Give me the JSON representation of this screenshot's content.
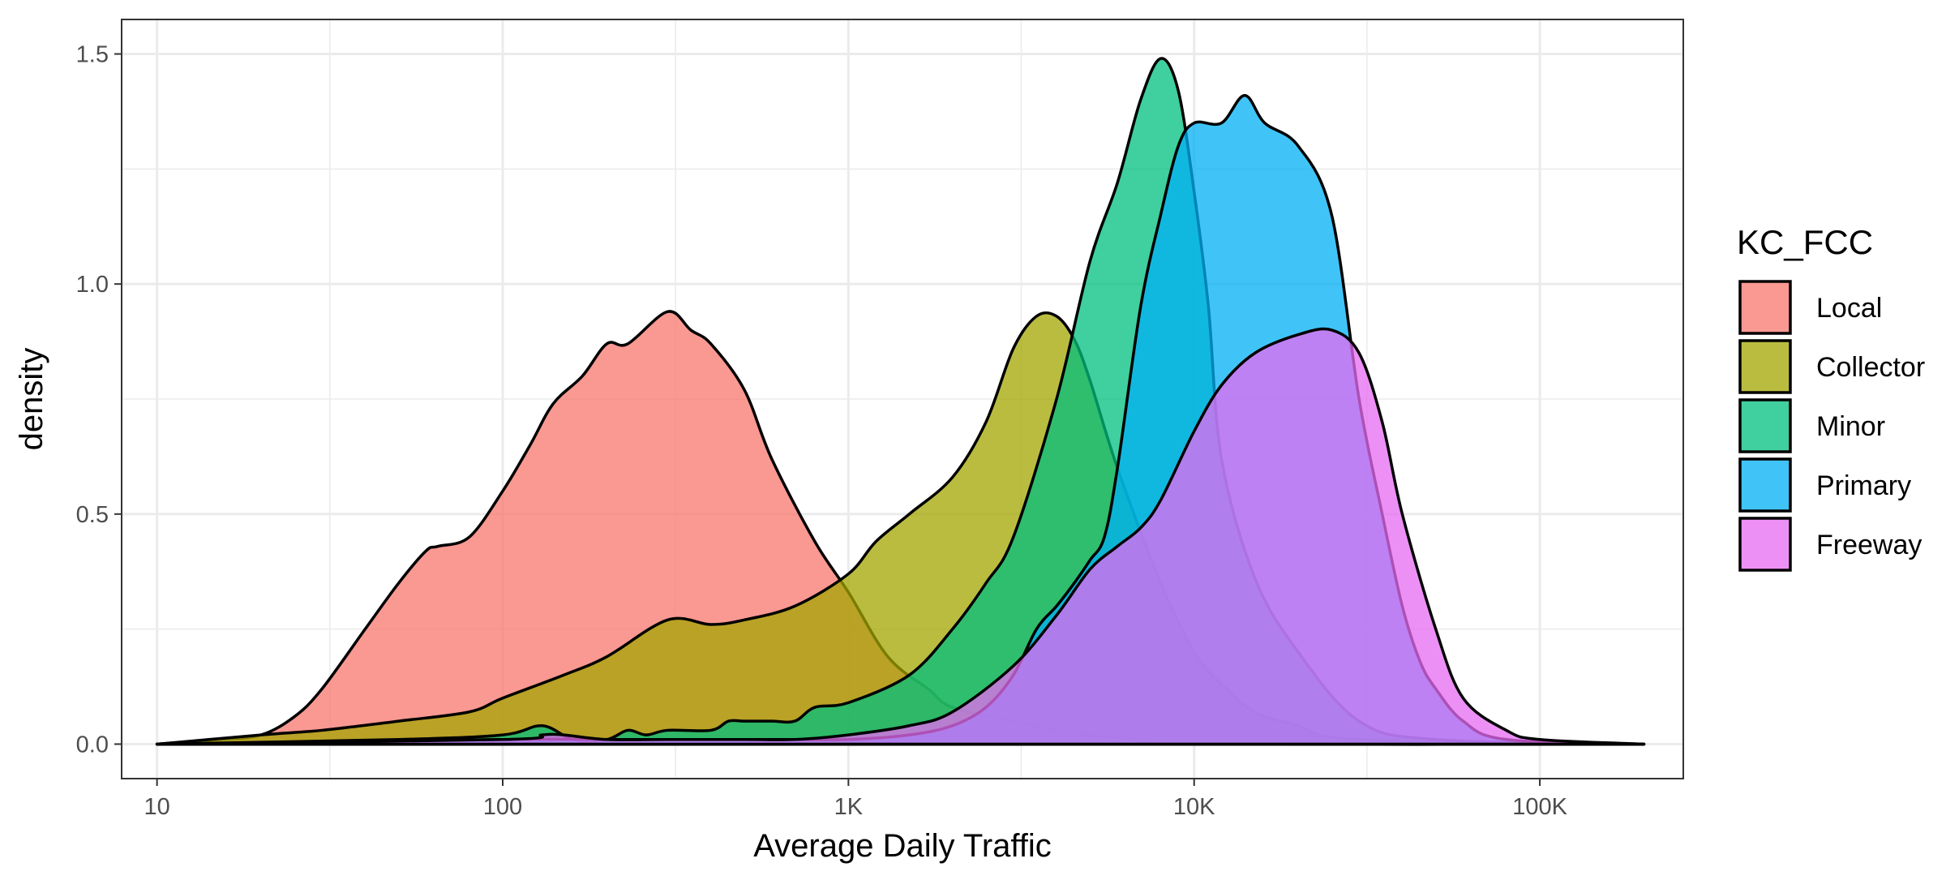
{
  "chart_data": {
    "type": "area",
    "subtype": "density",
    "xlabel": "Average Daily Traffic",
    "ylabel": "density",
    "x_scale": "log10",
    "xlim": [
      7.9,
      260000
    ],
    "ylim": [
      -0.075,
      1.575
    ],
    "x_ticks": [
      {
        "value": 10,
        "label": "10"
      },
      {
        "value": 100,
        "label": "100"
      },
      {
        "value": 1000,
        "label": "1K"
      },
      {
        "value": 10000,
        "label": "10K"
      },
      {
        "value": 100000,
        "label": "100K"
      }
    ],
    "y_ticks": [
      {
        "value": 0,
        "label": "0.0"
      },
      {
        "value": 0.5,
        "label": "0.5"
      },
      {
        "value": 1.0,
        "label": "1.0"
      },
      {
        "value": 1.5,
        "label": "1.5"
      }
    ],
    "grid": true,
    "legend": {
      "title": "KC_FCC",
      "position": "right"
    },
    "colors": {
      "Local": "#F8766D",
      "Collector": "#A3A500",
      "Minor": "#00BF7D",
      "Primary": "#00B0F6",
      "Freeway": "#E76BF3"
    },
    "fill_alpha": 0.75,
    "series": [
      {
        "name": "Local",
        "x": [
          10,
          15,
          20,
          25,
          30,
          40,
          50,
          60,
          65,
          80,
          100,
          120,
          140,
          170,
          200,
          230,
          300,
          350,
          400,
          500,
          600,
          800,
          1000,
          1300,
          1700,
          2000,
          3000,
          4000,
          5000,
          7000,
          10000,
          200000
        ],
        "y": [
          0.0,
          0.01,
          0.02,
          0.06,
          0.12,
          0.25,
          0.35,
          0.42,
          0.43,
          0.45,
          0.55,
          0.65,
          0.74,
          0.8,
          0.87,
          0.87,
          0.94,
          0.9,
          0.87,
          0.77,
          0.62,
          0.44,
          0.33,
          0.19,
          0.12,
          0.08,
          0.05,
          0.03,
          0.02,
          0.01,
          0.0,
          0.0
        ]
      },
      {
        "name": "Collector",
        "x": [
          10,
          20,
          30,
          50,
          80,
          100,
          150,
          200,
          300,
          400,
          500,
          700,
          1000,
          1200,
          1500,
          2000,
          2500,
          3000,
          3500,
          4000,
          4500,
          5000,
          6000,
          8000,
          10000,
          12000,
          15000,
          20000,
          30000,
          200000
        ],
        "y": [
          0.0,
          0.02,
          0.03,
          0.05,
          0.07,
          0.1,
          0.15,
          0.19,
          0.27,
          0.26,
          0.27,
          0.3,
          0.37,
          0.44,
          0.5,
          0.58,
          0.7,
          0.86,
          0.93,
          0.93,
          0.88,
          0.79,
          0.6,
          0.35,
          0.2,
          0.13,
          0.07,
          0.04,
          0.01,
          0.0
        ]
      },
      {
        "name": "Minor",
        "x": [
          10,
          50,
          100,
          130,
          160,
          200,
          230,
          260,
          300,
          400,
          450,
          500,
          600,
          700,
          800,
          1000,
          1500,
          2000,
          2500,
          3000,
          4000,
          5000,
          6000,
          7000,
          8000,
          9000,
          10000,
          11000,
          12000,
          15000,
          20000,
          30000,
          50000,
          200000
        ],
        "y": [
          0.0,
          0.01,
          0.02,
          0.04,
          0.01,
          0.01,
          0.03,
          0.02,
          0.03,
          0.03,
          0.05,
          0.05,
          0.05,
          0.05,
          0.08,
          0.09,
          0.15,
          0.25,
          0.35,
          0.45,
          0.75,
          1.05,
          1.22,
          1.4,
          1.49,
          1.42,
          1.2,
          0.95,
          0.62,
          0.36,
          0.2,
          0.05,
          0.01,
          0.0
        ]
      },
      {
        "name": "Primary",
        "x": [
          10,
          100,
          200,
          300,
          500,
          700,
          1000,
          1500,
          2000,
          2500,
          3000,
          3500,
          4000,
          4500,
          5000,
          5500,
          6000,
          7000,
          8000,
          9000,
          10000,
          12000,
          14000,
          16000,
          20000,
          25000,
          30000,
          35000,
          40000,
          45000,
          50000,
          60000,
          80000,
          200000
        ],
        "y": [
          0.0,
          0.01,
          0.01,
          0.01,
          0.01,
          0.01,
          0.01,
          0.02,
          0.04,
          0.08,
          0.15,
          0.25,
          0.3,
          0.35,
          0.4,
          0.45,
          0.6,
          0.95,
          1.15,
          1.3,
          1.35,
          1.35,
          1.41,
          1.35,
          1.3,
          1.15,
          0.75,
          0.5,
          0.3,
          0.18,
          0.12,
          0.05,
          0.01,
          0.0
        ]
      },
      {
        "name": "Freeway",
        "x": [
          10,
          100,
          130,
          150,
          200,
          300,
          500,
          700,
          1000,
          1500,
          2000,
          3000,
          4000,
          5000,
          6000,
          7000,
          8000,
          10000,
          12000,
          15000,
          20000,
          25000,
          30000,
          35000,
          40000,
          50000,
          60000,
          80000,
          100000,
          200000
        ],
        "y": [
          0.0,
          0.01,
          0.02,
          0.02,
          0.01,
          0.01,
          0.01,
          0.01,
          0.02,
          0.04,
          0.07,
          0.17,
          0.28,
          0.38,
          0.43,
          0.47,
          0.53,
          0.68,
          0.78,
          0.85,
          0.89,
          0.9,
          0.85,
          0.7,
          0.5,
          0.25,
          0.1,
          0.03,
          0.01,
          0.0
        ]
      }
    ]
  }
}
